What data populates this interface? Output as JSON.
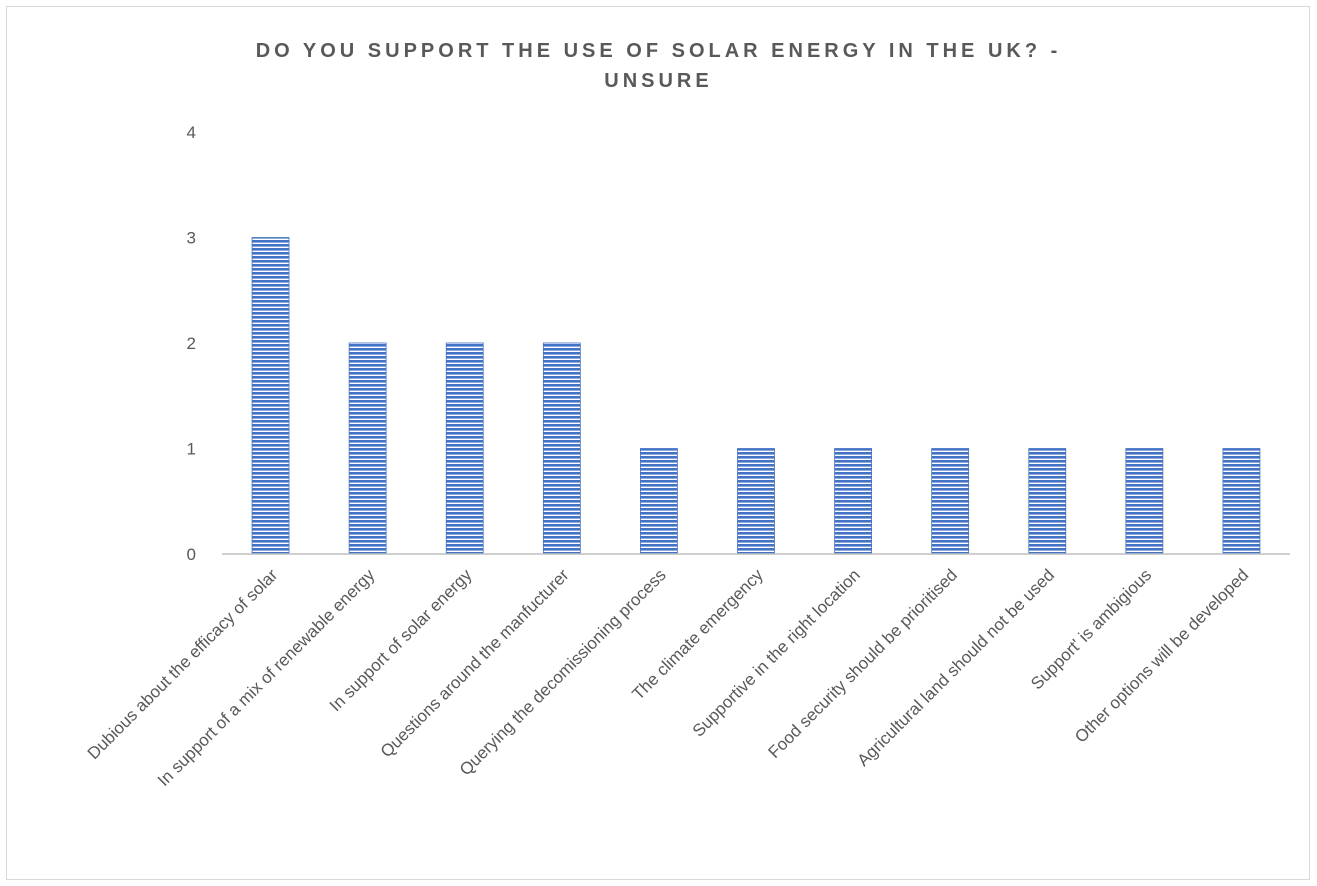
{
  "chart_data": {
    "type": "bar",
    "title_lines": [
      "DO YOU SUPPORT THE USE OF SOLAR ENERGY IN THE UK? -",
      "UNSURE"
    ],
    "categories": [
      "Dubious about the efficacy of solar",
      "In support of a mix of renewable energy",
      "In support of solar energy",
      "Questions around the manfucturer",
      "Querying the decomissioning process",
      "The climate emergency",
      "Supportive in the right location",
      "Food security should be prioritised",
      "Agricultural land should not be used",
      "Support' is ambigious",
      "Other options will be developed"
    ],
    "values": [
      3,
      2,
      2,
      2,
      1,
      1,
      1,
      1,
      1,
      1,
      1
    ],
    "ylim": [
      0,
      4
    ],
    "yticks": [
      "0",
      "1",
      "2",
      "3",
      "4"
    ],
    "grid": false,
    "legend": "none",
    "bar_color": "#4472c4",
    "bar_pattern": "horizontal-stripes"
  }
}
